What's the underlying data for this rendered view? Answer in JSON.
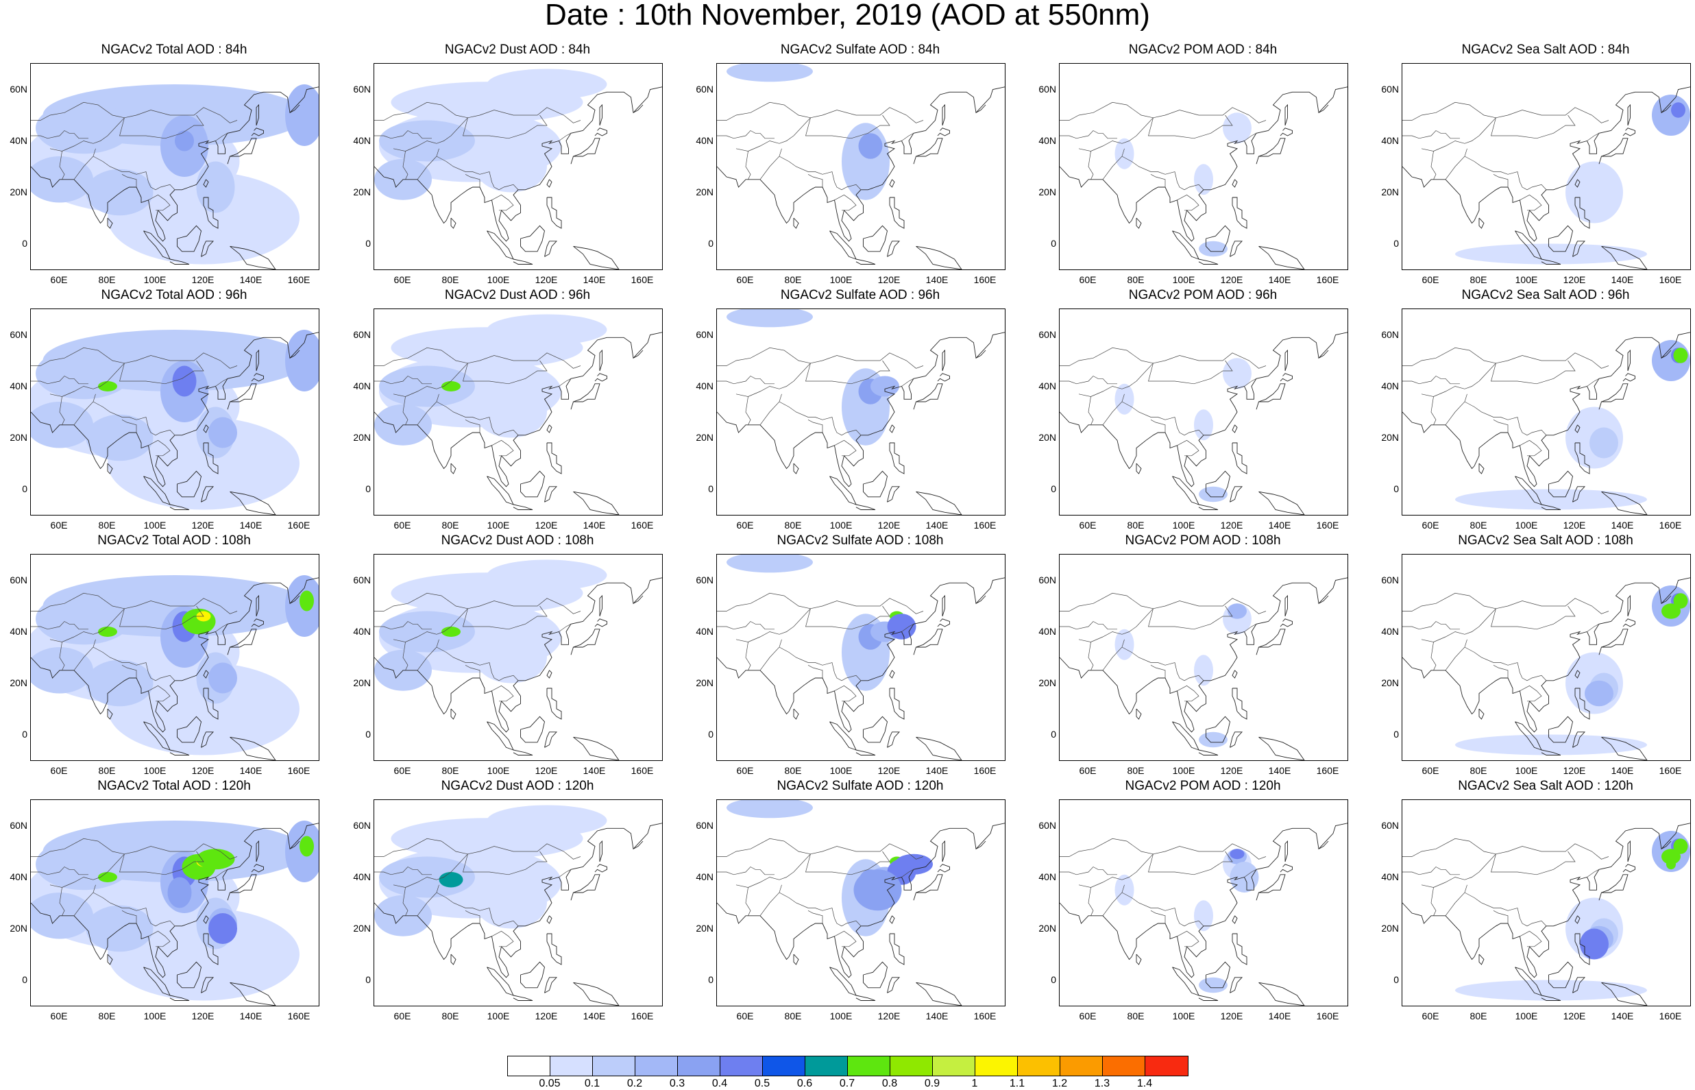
{
  "title": "Date : 10th November, 2019 (AOD at 550nm)",
  "lat_ticks": [
    "60N",
    "40N",
    "20N",
    "0"
  ],
  "lon_ticks": [
    "60E",
    "80E",
    "100E",
    "120E",
    "140E",
    "160E"
  ],
  "panels": [
    [
      "NGACv2 Total AOD : 84h",
      "NGACv2 Dust AOD : 84h",
      "NGACv2 Sulfate AOD : 84h",
      "NGACv2 POM AOD : 84h",
      "NGACv2 Sea Salt AOD : 84h"
    ],
    [
      "NGACv2 Total AOD : 96h",
      "NGACv2 Dust AOD : 96h",
      "NGACv2 Sulfate AOD : 96h",
      "NGACv2 POM AOD : 96h",
      "NGACv2 Sea Salt AOD : 96h"
    ],
    [
      "NGACv2 Total AOD : 108h",
      "NGACv2 Dust AOD : 108h",
      "NGACv2 Sulfate AOD : 108h",
      "NGACv2 POM AOD : 108h",
      "NGACv2 Sea Salt AOD : 108h"
    ],
    [
      "NGACv2 Total AOD : 120h",
      "NGACv2 Dust AOD : 120h",
      "NGACv2 Sulfate AOD : 120h",
      "NGACv2 POM AOD : 120h",
      "NGACv2 Sea Salt  AOD : 120h"
    ]
  ],
  "colorbar": {
    "labels": [
      "0.05",
      "0.1",
      "0.2",
      "0.3",
      "0.4",
      "0.5",
      "0.6",
      "0.7",
      "0.8",
      "0.9",
      "1",
      "1.1",
      "1.2",
      "1.3",
      "1.4"
    ],
    "colors": [
      "#ffffff",
      "#d6e0ff",
      "#bccdfa",
      "#a3b8f7",
      "#8aa2f2",
      "#6e7ff0",
      "#0f56e8",
      "#009a9a",
      "#5ee60f",
      "#8fe800",
      "#c5ef40",
      "#fcf500",
      "#fcc000",
      "#fb9b00",
      "#fb6e00",
      "#f82a10"
    ]
  }
}
